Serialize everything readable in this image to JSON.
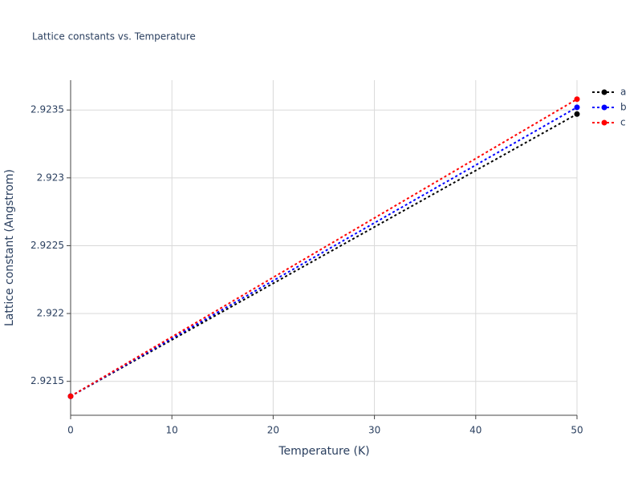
{
  "chart_data": {
    "type": "line",
    "title": "Lattice constants vs. Temperature",
    "x_label": "Temperature (K)",
    "y_label": "Lattice constant (Angstrom)",
    "x": [
      0,
      50
    ],
    "series": [
      {
        "name": "a",
        "color": "#000000",
        "values": [
          2.92139,
          2.92347
        ]
      },
      {
        "name": "b",
        "color": "#0000ff",
        "values": [
          2.92139,
          2.92352
        ]
      },
      {
        "name": "c",
        "color": "#ff0000",
        "values": [
          2.92139,
          2.92358
        ]
      }
    ],
    "xlim": [
      0,
      50
    ],
    "xticks": [
      0,
      10,
      20,
      30,
      40,
      50
    ],
    "ylim": [
      2.92125,
      2.92372
    ],
    "yticks": [
      2.9215,
      2.922,
      2.9225,
      2.923,
      2.9235
    ],
    "grid": true,
    "line_style": "dot",
    "legend": "right"
  }
}
